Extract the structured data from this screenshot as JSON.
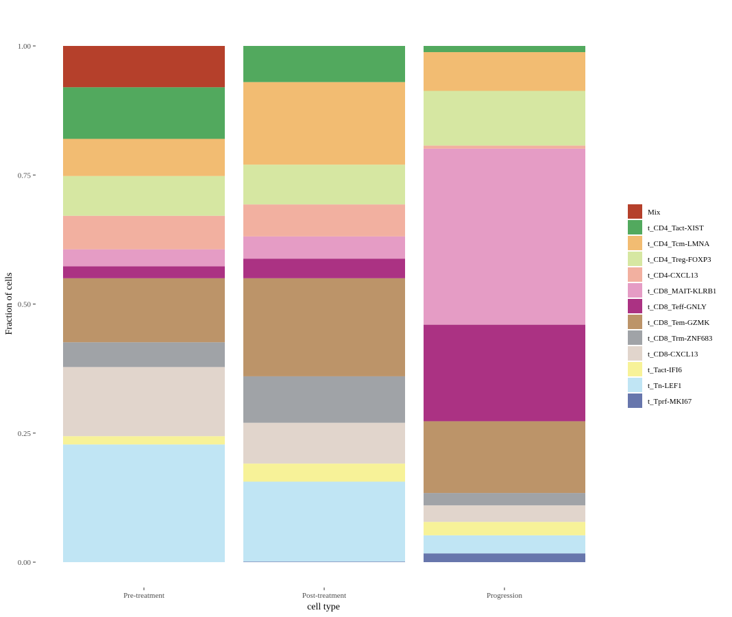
{
  "chart_data": {
    "type": "bar",
    "stacked": true,
    "normalized": true,
    "xlabel": "cell type",
    "ylabel": "Fraction of cells",
    "ylim": [
      0,
      1
    ],
    "yticks": [
      0,
      0.25,
      0.5,
      0.75,
      1
    ],
    "ytick_labels": [
      "0.00",
      "0.25",
      "0.50",
      "0.75",
      "1.00"
    ],
    "grid": false,
    "legend_position": "right",
    "categories": [
      "Pre-treatment",
      "Post-treatment",
      "Progression"
    ],
    "series": [
      {
        "name": "Mix",
        "color": "#B5402B",
        "values": [
          0.08,
          0.0,
          0.0
        ]
      },
      {
        "name": "t_CD4_Tact-XIST",
        "color": "#52A95E",
        "values": [
          0.1,
          0.07,
          0.012
        ]
      },
      {
        "name": "t_CD4_Tcm-LMNA",
        "color": "#F2BC72",
        "values": [
          0.072,
          0.16,
          0.075
        ]
      },
      {
        "name": "t_CD4_Treg-FOXP3",
        "color": "#D6E7A2",
        "values": [
          0.077,
          0.077,
          0.106
        ]
      },
      {
        "name": "t_CD4-CXCL13",
        "color": "#F2B0A0",
        "values": [
          0.065,
          0.062,
          0.006
        ]
      },
      {
        "name": "t_CD8_MAIT-KLRB1",
        "color": "#E59CC5",
        "values": [
          0.033,
          0.043,
          0.341
        ]
      },
      {
        "name": "t_CD8_Teff-GNLY",
        "color": "#AB3283",
        "values": [
          0.023,
          0.038,
          0.187
        ]
      },
      {
        "name": "t_CD8_Tem-GZMK",
        "color": "#BC9469",
        "values": [
          0.124,
          0.19,
          0.139
        ]
      },
      {
        "name": "t_CD8_Trm-ZNF683",
        "color": "#A0A3A7",
        "values": [
          0.048,
          0.09,
          0.024
        ]
      },
      {
        "name": "t_CD8-CXCL13",
        "color": "#E1D5CC",
        "values": [
          0.134,
          0.079,
          0.032
        ]
      },
      {
        "name": "t_Tact-IFI6",
        "color": "#F7F298",
        "values": [
          0.016,
          0.035,
          0.026
        ]
      },
      {
        "name": "t_Tn-LEF1",
        "color": "#C0E5F4",
        "values": [
          0.228,
          0.155,
          0.035
        ]
      },
      {
        "name": "t_Tprf-MKI67",
        "color": "#6776AC",
        "values": [
          0.0,
          0.001,
          0.017
        ]
      }
    ]
  }
}
